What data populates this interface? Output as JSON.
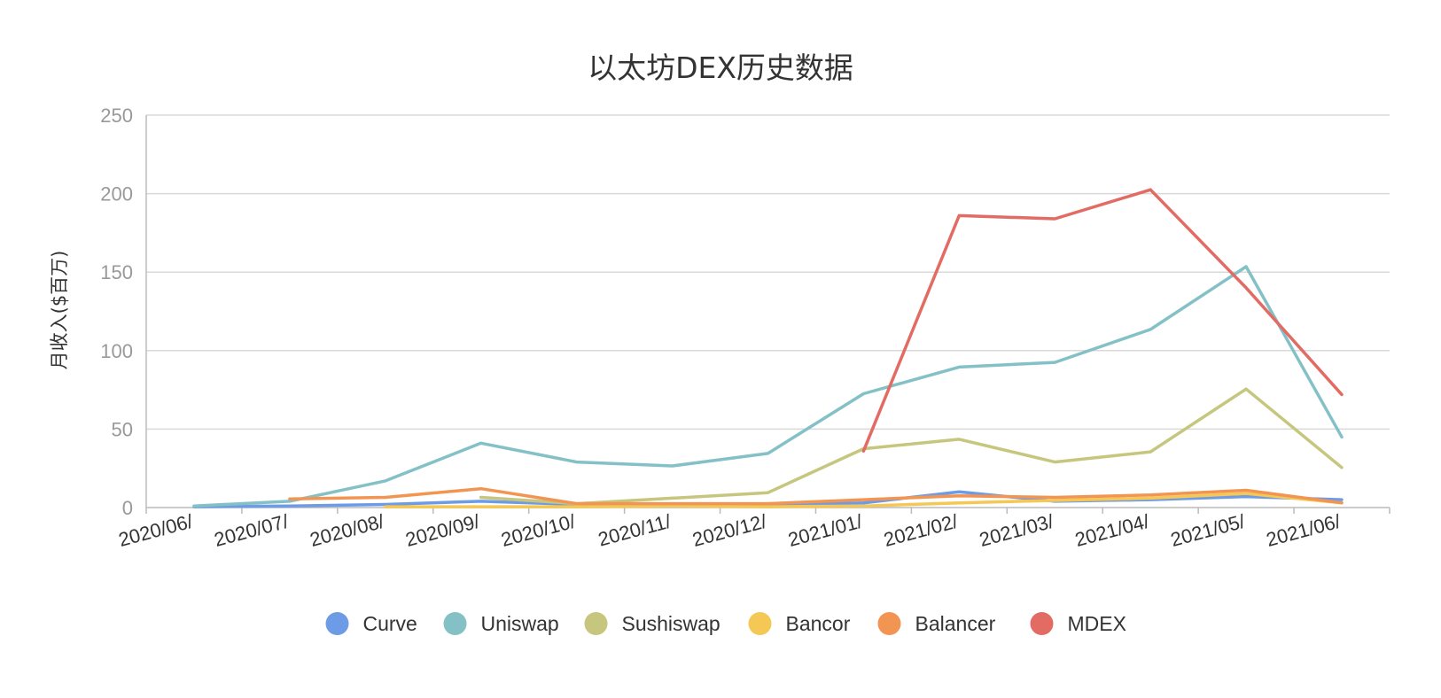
{
  "chart_data": {
    "type": "line",
    "title": "以太坊DEX历史数据",
    "ylabel": "月收入($百万)",
    "xlabel": "",
    "ylim": [
      0,
      250
    ],
    "yticks": [
      "0",
      "50",
      "100",
      "150",
      "200",
      "250"
    ],
    "categories": [
      "2020/06/",
      "2020/07/",
      "2020/08/",
      "2020/09/",
      "2020/10/",
      "2020/11/",
      "2020/12/",
      "2021/01/",
      "2021/02/",
      "2021/03/",
      "2021/04/",
      "2021/05/",
      "2021/06/"
    ],
    "grid": true,
    "legend_position": "bottom",
    "series": [
      {
        "name": "Curve",
        "color": "#6e9be6",
        "values": [
          0.5,
          1,
          2,
          4,
          2,
          1.5,
          1.5,
          3,
          10,
          4,
          5,
          7,
          5
        ]
      },
      {
        "name": "Uniswap",
        "color": "#84c1c6",
        "values": [
          1,
          4,
          17,
          41,
          29,
          26.5,
          34.5,
          72.5,
          89.5,
          92.5,
          113.5,
          153.5,
          45
        ]
      },
      {
        "name": "Sushiswap",
        "color": "#c6c67e",
        "values": [
          null,
          null,
          null,
          6.5,
          2.5,
          6,
          9.5,
          37.5,
          43.5,
          29,
          35.5,
          75.5,
          25.5
        ]
      },
      {
        "name": "Bancor",
        "color": "#f5c754",
        "values": [
          null,
          null,
          0.5,
          0.5,
          0.5,
          1,
          0.5,
          1,
          3,
          4.5,
          6,
          9,
          3
        ]
      },
      {
        "name": "Balancer",
        "color": "#f29552",
        "values": [
          null,
          5.5,
          6.5,
          12,
          2.5,
          2.5,
          2.5,
          5,
          7.5,
          6.5,
          8,
          11,
          3
        ]
      },
      {
        "name": "MDEX",
        "color": "#e26b63",
        "values": [
          null,
          null,
          null,
          null,
          null,
          null,
          null,
          36,
          186,
          184,
          202.5,
          140,
          72
        ]
      }
    ]
  }
}
